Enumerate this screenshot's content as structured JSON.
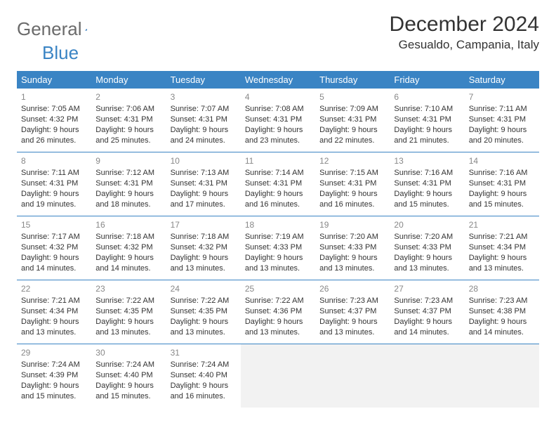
{
  "logo": {
    "text1": "General",
    "text2": "Blue"
  },
  "title": "December 2024",
  "location": "Gesualdo, Campania, Italy",
  "colors": {
    "header_bg": "#3a84c4",
    "header_text": "#ffffff",
    "border": "#3a84c4",
    "daynum": "#888888",
    "body_text": "#333333",
    "empty_bg": "#f2f2f2",
    "logo_gray": "#6b6b6b",
    "logo_blue": "#3a84c4"
  },
  "weekdays": [
    "Sunday",
    "Monday",
    "Tuesday",
    "Wednesday",
    "Thursday",
    "Friday",
    "Saturday"
  ],
  "weeks": [
    [
      {
        "n": "1",
        "sr": "Sunrise: 7:05 AM",
        "ss": "Sunset: 4:32 PM",
        "d1": "Daylight: 9 hours",
        "d2": "and 26 minutes."
      },
      {
        "n": "2",
        "sr": "Sunrise: 7:06 AM",
        "ss": "Sunset: 4:31 PM",
        "d1": "Daylight: 9 hours",
        "d2": "and 25 minutes."
      },
      {
        "n": "3",
        "sr": "Sunrise: 7:07 AM",
        "ss": "Sunset: 4:31 PM",
        "d1": "Daylight: 9 hours",
        "d2": "and 24 minutes."
      },
      {
        "n": "4",
        "sr": "Sunrise: 7:08 AM",
        "ss": "Sunset: 4:31 PM",
        "d1": "Daylight: 9 hours",
        "d2": "and 23 minutes."
      },
      {
        "n": "5",
        "sr": "Sunrise: 7:09 AM",
        "ss": "Sunset: 4:31 PM",
        "d1": "Daylight: 9 hours",
        "d2": "and 22 minutes."
      },
      {
        "n": "6",
        "sr": "Sunrise: 7:10 AM",
        "ss": "Sunset: 4:31 PM",
        "d1": "Daylight: 9 hours",
        "d2": "and 21 minutes."
      },
      {
        "n": "7",
        "sr": "Sunrise: 7:11 AM",
        "ss": "Sunset: 4:31 PM",
        "d1": "Daylight: 9 hours",
        "d2": "and 20 minutes."
      }
    ],
    [
      {
        "n": "8",
        "sr": "Sunrise: 7:11 AM",
        "ss": "Sunset: 4:31 PM",
        "d1": "Daylight: 9 hours",
        "d2": "and 19 minutes."
      },
      {
        "n": "9",
        "sr": "Sunrise: 7:12 AM",
        "ss": "Sunset: 4:31 PM",
        "d1": "Daylight: 9 hours",
        "d2": "and 18 minutes."
      },
      {
        "n": "10",
        "sr": "Sunrise: 7:13 AM",
        "ss": "Sunset: 4:31 PM",
        "d1": "Daylight: 9 hours",
        "d2": "and 17 minutes."
      },
      {
        "n": "11",
        "sr": "Sunrise: 7:14 AM",
        "ss": "Sunset: 4:31 PM",
        "d1": "Daylight: 9 hours",
        "d2": "and 16 minutes."
      },
      {
        "n": "12",
        "sr": "Sunrise: 7:15 AM",
        "ss": "Sunset: 4:31 PM",
        "d1": "Daylight: 9 hours",
        "d2": "and 16 minutes."
      },
      {
        "n": "13",
        "sr": "Sunrise: 7:16 AM",
        "ss": "Sunset: 4:31 PM",
        "d1": "Daylight: 9 hours",
        "d2": "and 15 minutes."
      },
      {
        "n": "14",
        "sr": "Sunrise: 7:16 AM",
        "ss": "Sunset: 4:31 PM",
        "d1": "Daylight: 9 hours",
        "d2": "and 15 minutes."
      }
    ],
    [
      {
        "n": "15",
        "sr": "Sunrise: 7:17 AM",
        "ss": "Sunset: 4:32 PM",
        "d1": "Daylight: 9 hours",
        "d2": "and 14 minutes."
      },
      {
        "n": "16",
        "sr": "Sunrise: 7:18 AM",
        "ss": "Sunset: 4:32 PM",
        "d1": "Daylight: 9 hours",
        "d2": "and 14 minutes."
      },
      {
        "n": "17",
        "sr": "Sunrise: 7:18 AM",
        "ss": "Sunset: 4:32 PM",
        "d1": "Daylight: 9 hours",
        "d2": "and 13 minutes."
      },
      {
        "n": "18",
        "sr": "Sunrise: 7:19 AM",
        "ss": "Sunset: 4:33 PM",
        "d1": "Daylight: 9 hours",
        "d2": "and 13 minutes."
      },
      {
        "n": "19",
        "sr": "Sunrise: 7:20 AM",
        "ss": "Sunset: 4:33 PM",
        "d1": "Daylight: 9 hours",
        "d2": "and 13 minutes."
      },
      {
        "n": "20",
        "sr": "Sunrise: 7:20 AM",
        "ss": "Sunset: 4:33 PM",
        "d1": "Daylight: 9 hours",
        "d2": "and 13 minutes."
      },
      {
        "n": "21",
        "sr": "Sunrise: 7:21 AM",
        "ss": "Sunset: 4:34 PM",
        "d1": "Daylight: 9 hours",
        "d2": "and 13 minutes."
      }
    ],
    [
      {
        "n": "22",
        "sr": "Sunrise: 7:21 AM",
        "ss": "Sunset: 4:34 PM",
        "d1": "Daylight: 9 hours",
        "d2": "and 13 minutes."
      },
      {
        "n": "23",
        "sr": "Sunrise: 7:22 AM",
        "ss": "Sunset: 4:35 PM",
        "d1": "Daylight: 9 hours",
        "d2": "and 13 minutes."
      },
      {
        "n": "24",
        "sr": "Sunrise: 7:22 AM",
        "ss": "Sunset: 4:35 PM",
        "d1": "Daylight: 9 hours",
        "d2": "and 13 minutes."
      },
      {
        "n": "25",
        "sr": "Sunrise: 7:22 AM",
        "ss": "Sunset: 4:36 PM",
        "d1": "Daylight: 9 hours",
        "d2": "and 13 minutes."
      },
      {
        "n": "26",
        "sr": "Sunrise: 7:23 AM",
        "ss": "Sunset: 4:37 PM",
        "d1": "Daylight: 9 hours",
        "d2": "and 13 minutes."
      },
      {
        "n": "27",
        "sr": "Sunrise: 7:23 AM",
        "ss": "Sunset: 4:37 PM",
        "d1": "Daylight: 9 hours",
        "d2": "and 14 minutes."
      },
      {
        "n": "28",
        "sr": "Sunrise: 7:23 AM",
        "ss": "Sunset: 4:38 PM",
        "d1": "Daylight: 9 hours",
        "d2": "and 14 minutes."
      }
    ],
    [
      {
        "n": "29",
        "sr": "Sunrise: 7:24 AM",
        "ss": "Sunset: 4:39 PM",
        "d1": "Daylight: 9 hours",
        "d2": "and 15 minutes."
      },
      {
        "n": "30",
        "sr": "Sunrise: 7:24 AM",
        "ss": "Sunset: 4:40 PM",
        "d1": "Daylight: 9 hours",
        "d2": "and 15 minutes."
      },
      {
        "n": "31",
        "sr": "Sunrise: 7:24 AM",
        "ss": "Sunset: 4:40 PM",
        "d1": "Daylight: 9 hours",
        "d2": "and 16 minutes."
      },
      {
        "empty": true
      },
      {
        "empty": true
      },
      {
        "empty": true
      },
      {
        "empty": true
      }
    ]
  ]
}
